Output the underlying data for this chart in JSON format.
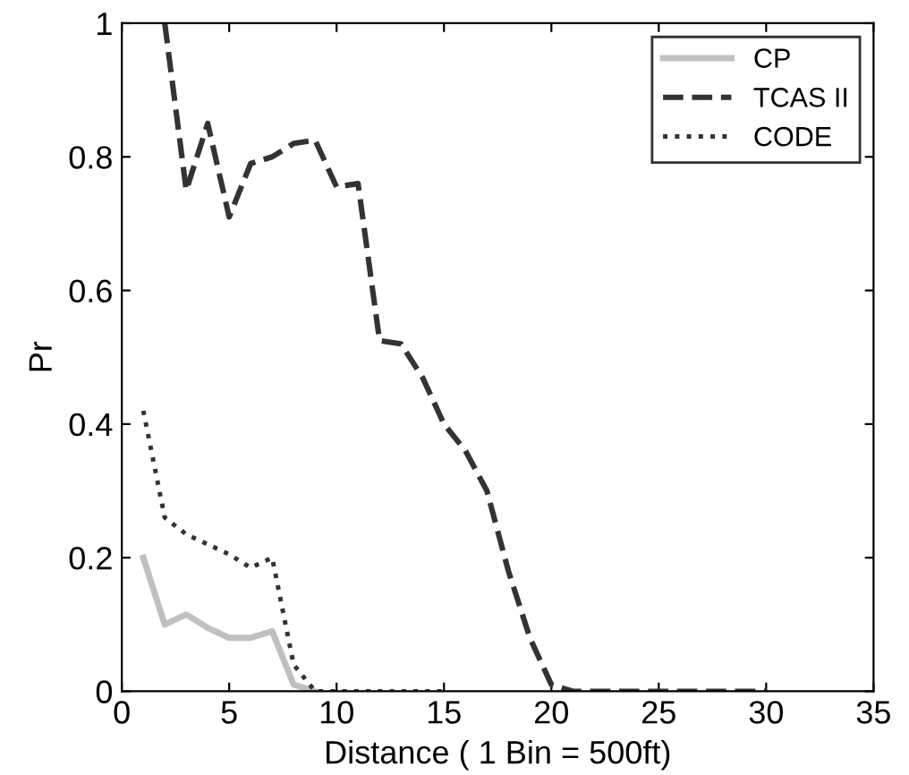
{
  "chart_data": {
    "type": "line",
    "xlabel": "Distance ( 1 Bin = 500ft)",
    "ylabel": "Pr",
    "xlim": [
      0,
      35
    ],
    "xticks": [
      0,
      5,
      10,
      15,
      20,
      25,
      30,
      35
    ],
    "ylim": [
      0,
      1
    ],
    "yticks": [
      0,
      0.2,
      0.4,
      0.6,
      0.8,
      1
    ],
    "grid": false,
    "legend": "top right",
    "series": [
      {
        "name": "CP",
        "color": "#c0c0c0",
        "line_style": "solid",
        "x": [
          1,
          2,
          3,
          4,
          5,
          6,
          7,
          8,
          9
        ],
        "values": [
          0.2,
          0.1,
          0.115,
          0.095,
          0.08,
          0.08,
          0.09,
          0.01,
          0
        ]
      },
      {
        "name": "TCAS II",
        "color": "#333333",
        "line_style": "dashed",
        "x": [
          2,
          3,
          4,
          5,
          6,
          7,
          8,
          9,
          10,
          11,
          12,
          13,
          14,
          15,
          16,
          17,
          18,
          19,
          20,
          21,
          22,
          23,
          24,
          25,
          26,
          27,
          28,
          29,
          30
        ],
        "values": [
          1.0,
          0.75,
          0.85,
          0.71,
          0.79,
          0.8,
          0.82,
          0.825,
          0.755,
          0.76,
          0.525,
          0.52,
          0.47,
          0.4,
          0.36,
          0.3,
          0.18,
          0.08,
          0.01,
          0,
          0,
          0,
          0,
          0,
          0,
          0,
          0,
          0,
          0
        ]
      },
      {
        "name": "CODE",
        "color": "#333333",
        "line_style": "dotted",
        "x": [
          1,
          2,
          3,
          4,
          5,
          6,
          7,
          8,
          9,
          10,
          11,
          12,
          13,
          14,
          15
        ],
        "values": [
          0.42,
          0.26,
          0.235,
          0.22,
          0.205,
          0.185,
          0.2,
          0.04,
          0,
          0,
          0,
          0,
          0,
          0,
          0
        ]
      }
    ]
  }
}
